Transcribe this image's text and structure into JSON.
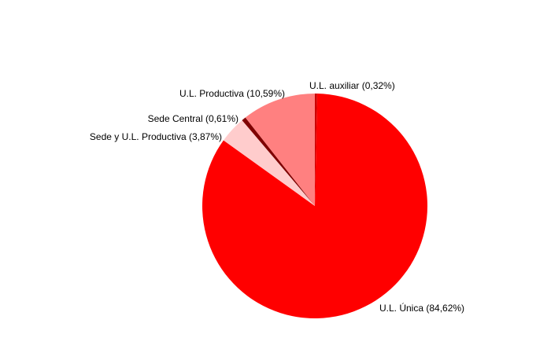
{
  "chart_data": {
    "type": "pie",
    "values": [
      0.32,
      84.62,
      3.87,
      0.61,
      10.59
    ],
    "value_labels": [
      "U.L. auxiliar (0,32%)",
      "U.L. Única (84,62%)",
      "Sede y U.L. Productiva  (3,87%)",
      "Sede Central  (0,61%)",
      "U.L. Productiva  (10,59%)"
    ],
    "colors": [
      "#cc0000",
      "#ff0000",
      "#ffcccc",
      "#800000",
      "#ff8080"
    ]
  }
}
